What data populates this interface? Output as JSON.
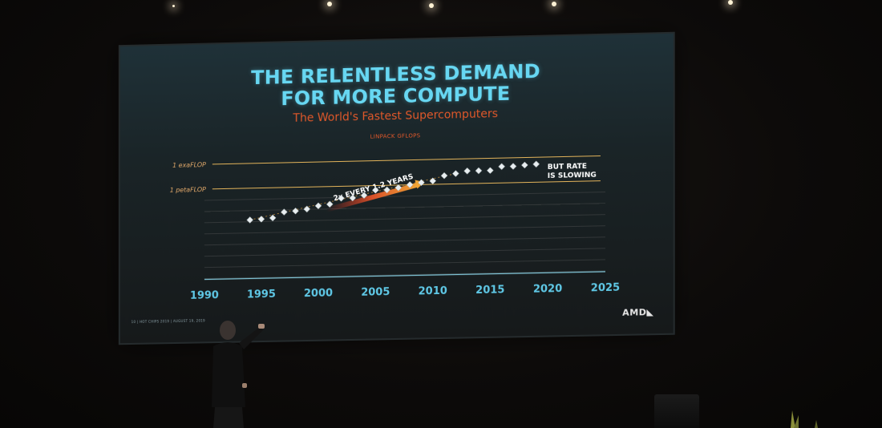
{
  "slide": {
    "title_line1": "THE RELENTLESS DEMAND",
    "title_line2": "FOR MORE COMPUTE",
    "subtitle": "The World's Fastest Supercomputers",
    "footer": "10  |  HOT CHIPS 2019  |  AUGUST 19, 2019",
    "logo": "AMD◣"
  },
  "colors": {
    "title": "#67d7f2",
    "subtitle": "#e0582a",
    "axis_years": "#5fc8e6",
    "reference_lines": "#e2b35a",
    "markers": "#e8eef0"
  },
  "chart_data": {
    "type": "scatter",
    "title": "LINPACK GFLOPS",
    "x_ticks": [
      1990,
      1995,
      2000,
      2005,
      2010,
      2015,
      2020,
      2025
    ],
    "xlim": [
      1990,
      2025
    ],
    "y_scale": "log",
    "y_unit": "GFLOPS",
    "reference_lines": [
      {
        "label": "1 exaFLOP",
        "value": 1000000000
      },
      {
        "label": "1 petaFLOP",
        "value": 1000000
      }
    ],
    "series": [
      {
        "points": [
          {
            "x": 1994,
            "y": 143
          },
          {
            "x": 1995,
            "y": 170
          },
          {
            "x": 1996,
            "y": 220
          },
          {
            "x": 1997,
            "y": 1070
          },
          {
            "x": 1998,
            "y": 1340
          },
          {
            "x": 1999,
            "y": 2120
          },
          {
            "x": 2000,
            "y": 4940
          },
          {
            "x": 2001,
            "y": 7230
          },
          {
            "x": 2002,
            "y": 35860
          },
          {
            "x": 2003,
            "y": 35860
          },
          {
            "x": 2004,
            "y": 70720
          },
          {
            "x": 2005,
            "y": 280600
          },
          {
            "x": 2006,
            "y": 280600
          },
          {
            "x": 2007,
            "y": 478200
          },
          {
            "x": 2008,
            "y": 1026000
          },
          {
            "x": 2009,
            "y": 1759000
          },
          {
            "x": 2010,
            "y": 2566000
          },
          {
            "x": 2011,
            "y": 10510000
          },
          {
            "x": 2012,
            "y": 17590000
          },
          {
            "x": 2013,
            "y": 33860000
          },
          {
            "x": 2014,
            "y": 33860000
          },
          {
            "x": 2015,
            "y": 33860000
          },
          {
            "x": 2016,
            "y": 93010000
          },
          {
            "x": 2017,
            "y": 93010000
          },
          {
            "x": 2018,
            "y": 122300000
          },
          {
            "x": 2019,
            "y": 148600000
          }
        ]
      }
    ],
    "annotations": [
      {
        "text": "2x EVERY 1.2 YEARS",
        "kind": "trend-arrow"
      },
      {
        "text": "BUT RATE IS SLOWING",
        "lines": [
          "BUT RATE",
          "IS SLOWING"
        ],
        "kind": "callout"
      }
    ],
    "grid": true
  }
}
